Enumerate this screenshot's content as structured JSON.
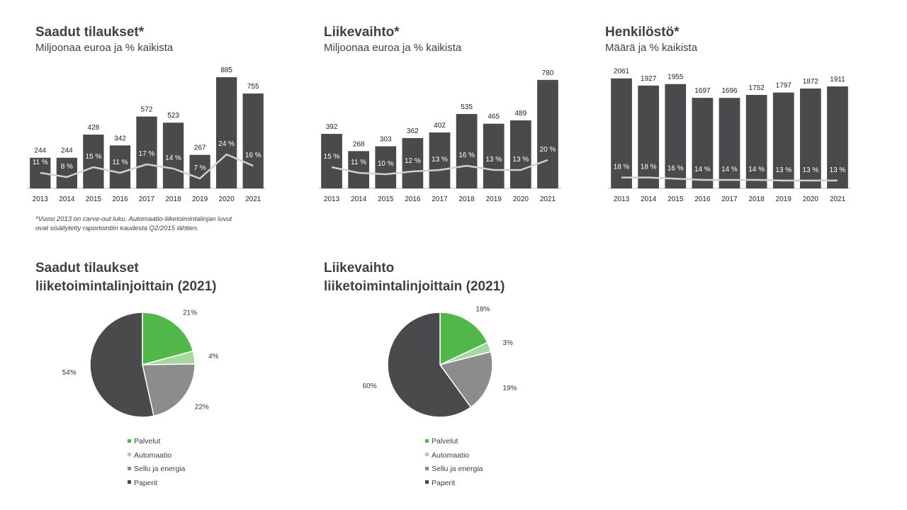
{
  "colors": {
    "bar": "#4a4a4c",
    "line": "#d0d0d0",
    "palvelut": "#50b848",
    "automaatio": "#a4d89c",
    "sellu": "#8c8c8e",
    "paperit": "#4a4a4c"
  },
  "footnote": {
    "line1": "*Vuosi 2013 on carve-out luku. Automaatio-liiketoimintalinjan luvut",
    "line2": "ovat sisällytetty raportointiin kaudesta Q2/2015 lähtien."
  },
  "chart_data": [
    {
      "type": "bar",
      "title": "Saadut tilaukset*",
      "subtitle": "Miljoonaa euroa ja % kaikista",
      "categories": [
        "2013",
        "2014",
        "2015",
        "2016",
        "2017",
        "2018",
        "2019",
        "2020",
        "2021"
      ],
      "values": [
        244,
        244,
        428,
        342,
        572,
        523,
        267,
        885,
        755
      ],
      "value_labels": [
        "244",
        "244",
        "428",
        "342",
        "572",
        "523",
        "267",
        "885",
        "755"
      ],
      "pct_values": [
        11,
        8,
        15,
        11,
        17,
        14,
        7,
        24,
        16
      ],
      "pct_labels": [
        "11 %",
        "8 %",
        "15 %",
        "11 %",
        "17 %",
        "14 %",
        "7 %",
        "24 %",
        "16 %"
      ],
      "ylim": [
        0,
        930
      ],
      "pct_lim": [
        0,
        30
      ]
    },
    {
      "type": "bar",
      "title": "Liikevaihto*",
      "subtitle": "Miljoonaa euroa ja % kaikista",
      "categories": [
        "2013",
        "2014",
        "2015",
        "2016",
        "2017",
        "2018",
        "2019",
        "2020",
        "2021"
      ],
      "values": [
        392,
        268,
        303,
        362,
        402,
        535,
        465,
        489,
        780
      ],
      "value_labels": [
        "392",
        "268",
        "303",
        "362",
        "402",
        "535",
        "465",
        "489",
        "780"
      ],
      "pct_values": [
        15,
        11,
        10,
        12,
        13,
        16,
        13,
        13,
        20
      ],
      "pct_labels": [
        "15 %",
        "11 %",
        "10 %",
        "12 %",
        "13 %",
        "16 %",
        "13 %",
        "13 %",
        "20 %"
      ],
      "ylim": [
        0,
        840
      ],
      "pct_lim": [
        0,
        30
      ]
    },
    {
      "type": "bar",
      "title": "Henkilöstö*",
      "subtitle": "Määrä ja % kaikista",
      "categories": [
        "2013",
        "2014",
        "2015",
        "2016",
        "2017",
        "2018",
        "2019",
        "2020",
        "2021"
      ],
      "values": [
        2061,
        1927,
        1955,
        1697,
        1696,
        1752,
        1797,
        1872,
        1911
      ],
      "value_labels": [
        "2061",
        "1927",
        "1955",
        "1697",
        "1696",
        "1752",
        "1797",
        "1872",
        "1911"
      ],
      "pct_values": [
        18,
        18,
        16,
        14,
        14,
        14,
        13,
        13,
        13
      ],
      "pct_labels": [
        "18 %",
        "18 %",
        "16 %",
        "14 %",
        "14 %",
        "14 %",
        "13 %",
        "13 %",
        "13 %"
      ],
      "ylim": [
        0,
        2190
      ],
      "pct_lim": [
        0,
        70
      ]
    },
    {
      "type": "pie",
      "title_line1": "Saadut tilaukset",
      "title_line2": "liiketoimintalinjoittain  (2021)",
      "labels": [
        "Palvelut",
        "Automaatio",
        "Sellu ja energia",
        "Paperit"
      ],
      "values": [
        21,
        4,
        22,
        54
      ],
      "value_labels": [
        "21%",
        "4%",
        "22%",
        "54%"
      ]
    },
    {
      "type": "pie",
      "title_line1": "Liikevaihto",
      "title_line2": "liiketoimintalinjoittain  (2021)",
      "labels": [
        "Palvelut",
        "Automaatio",
        "Sellu ja energia",
        "Paperit"
      ],
      "values": [
        18,
        3,
        19,
        60
      ],
      "value_labels": [
        "18%",
        "3%",
        "19%",
        "60%"
      ]
    }
  ]
}
